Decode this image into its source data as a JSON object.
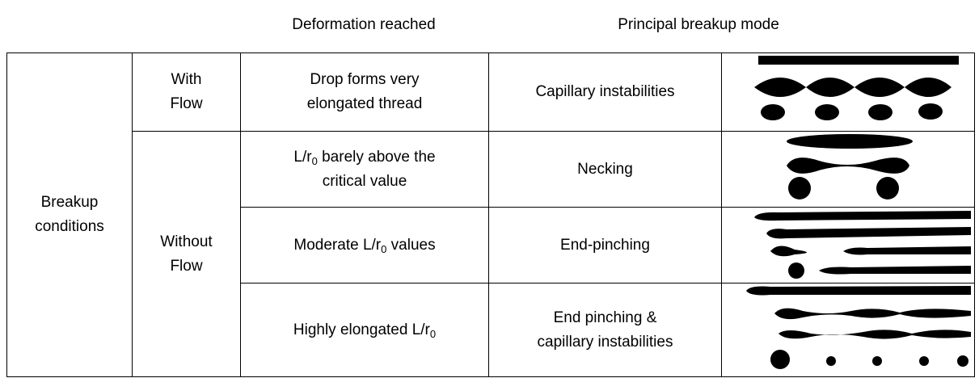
{
  "header": {
    "deformation": "Deformation reached",
    "mode": "Principal breakup mode"
  },
  "table": {
    "label": [
      "Breakup",
      "conditions"
    ],
    "groups": {
      "with": [
        "With",
        "Flow"
      ],
      "without": [
        "Without",
        "Flow"
      ]
    },
    "rows": [
      {
        "deformation": [
          "Drop forms very",
          "elongated thread"
        ],
        "mode": [
          "Capillary instabilities"
        ]
      },
      {
        "deformation": [
          {
            "pre": "L/r",
            "sub": "0",
            "post": " barely above the"
          },
          "critical value"
        ],
        "mode": [
          "Necking"
        ]
      },
      {
        "deformation": [
          {
            "pre": "Moderate L/r",
            "sub": "0",
            "post": " values"
          }
        ],
        "mode": [
          "End-pinching"
        ]
      },
      {
        "deformation": [
          {
            "pre": "Highly elongated L/r",
            "sub": "0"
          }
        ],
        "mode": [
          "End pinching &",
          "capillary instabilities"
        ]
      }
    ]
  }
}
